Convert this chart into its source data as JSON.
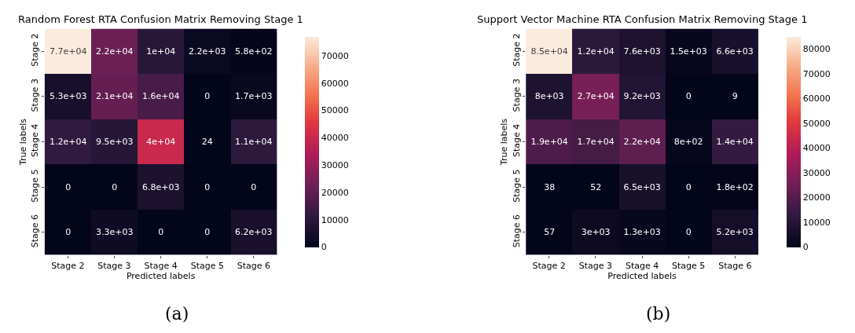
{
  "chart_data": [
    {
      "type": "heatmap",
      "title": "Random Forest RTA Confusion Matrix Removing Stage 1",
      "xlabel": "Predicted labels",
      "ylabel": "True labels",
      "categories": [
        "Stage 2",
        "Stage 3",
        "Stage 4",
        "Stage 5",
        "Stage 6"
      ],
      "y_categories": [
        "Stage 2",
        "Stage 3",
        "Stage 4",
        "Stage 5",
        "Stage 6"
      ],
      "cells": [
        [
          77000,
          22000,
          10000,
          2200,
          580
        ],
        [
          5300,
          21000,
          16000,
          0,
          1700
        ],
        [
          12000,
          9500,
          40000,
          24,
          11000
        ],
        [
          0,
          0,
          6800,
          0,
          0
        ],
        [
          0,
          3300,
          0,
          0,
          6200
        ]
      ],
      "cell_labels": [
        [
          "7.7e+04",
          "2.2e+04",
          "1e+04",
          "2.2e+03",
          "5.8e+02"
        ],
        [
          "5.3e+03",
          "2.1e+04",
          "1.6e+04",
          "0",
          "1.7e+03"
        ],
        [
          "1.2e+04",
          "9.5e+03",
          "4e+04",
          "24",
          "1.1e+04"
        ],
        [
          "0",
          "0",
          "6.8e+03",
          "0",
          "0"
        ],
        [
          "0",
          "3.3e+03",
          "0",
          "0",
          "6.2e+03"
        ]
      ],
      "clim": [
        0,
        77000
      ],
      "cticks": [
        0,
        10000,
        20000,
        30000,
        40000,
        50000,
        60000,
        70000
      ],
      "annotations": [
        "(a)"
      ]
    },
    {
      "type": "heatmap",
      "title": "Support Vector Machine RTA Confusion Matrix Removing Stage 1",
      "xlabel": "Predicted labels",
      "ylabel": "True labels",
      "categories": [
        "Stage 2",
        "Stage 3",
        "Stage 4",
        "Stage 5",
        "Stage 6"
      ],
      "y_categories": [
        "Stage 2",
        "Stage 3",
        "Stage 4",
        "Stage 5",
        "Stage 6"
      ],
      "cells": [
        [
          85000,
          12000,
          7600,
          1500,
          6600
        ],
        [
          8000,
          27000,
          9200,
          0,
          9
        ],
        [
          19000,
          17000,
          22000,
          800,
          14000
        ],
        [
          38,
          52,
          6500,
          0,
          180
        ],
        [
          57,
          3000,
          1300,
          0,
          5200
        ]
      ],
      "cell_labels": [
        [
          "8.5e+04",
          "1.2e+04",
          "7.6e+03",
          "1.5e+03",
          "6.6e+03"
        ],
        [
          "8e+03",
          "2.7e+04",
          "9.2e+03",
          "0",
          "9"
        ],
        [
          "1.9e+04",
          "1.7e+04",
          "2.2e+04",
          "8e+02",
          "1.4e+04"
        ],
        [
          "38",
          "52",
          "6.5e+03",
          "0",
          "1.8e+02"
        ],
        [
          "57",
          "3e+03",
          "1.3e+03",
          "0",
          "5.2e+03"
        ]
      ],
      "clim": [
        0,
        85000
      ],
      "cticks": [
        0,
        10000,
        20000,
        30000,
        40000,
        50000,
        60000,
        70000,
        80000
      ],
      "annotations": [
        "(b)"
      ]
    }
  ]
}
